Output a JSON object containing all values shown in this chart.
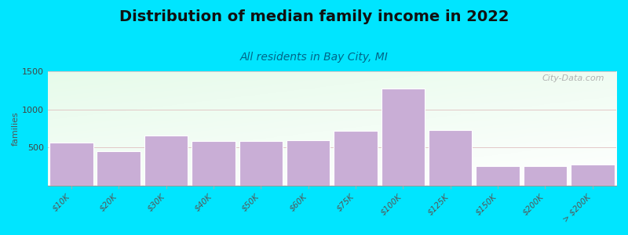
{
  "title": "Distribution of median family income in 2022",
  "subtitle": "All residents in Bay City, MI",
  "ylabel": "families",
  "categories": [
    "$10K",
    "$20K",
    "$30K",
    "$40K",
    "$50K",
    "$60K",
    "$75K",
    "$100K",
    "$125K",
    "$150K",
    "$200K",
    "> $200K"
  ],
  "values": [
    560,
    450,
    660,
    590,
    590,
    600,
    720,
    1270,
    730,
    255,
    255,
    280
  ],
  "bar_color": "#c9aed6",
  "bar_edge_color": "#ffffff",
  "background_outer": "#00e5ff",
  "ylim": [
    0,
    1500
  ],
  "yticks": [
    0,
    500,
    1000,
    1500
  ],
  "title_fontsize": 14,
  "subtitle_fontsize": 10,
  "ylabel_fontsize": 8,
  "watermark": "City-Data.com",
  "bar_width": 0.92
}
